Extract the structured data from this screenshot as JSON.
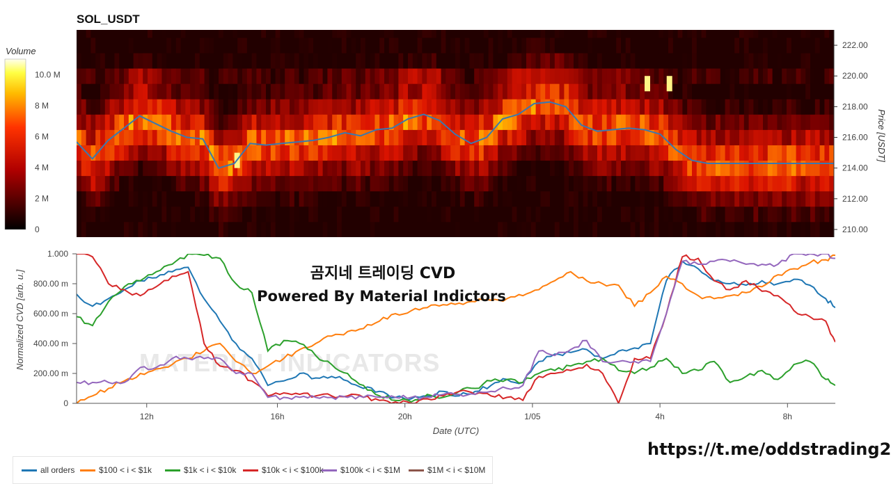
{
  "chart_data": [
    {
      "type": "heatmap",
      "title": "SOL_USDT",
      "colorbar": {
        "label": "Volume",
        "ticks": [
          "10.0 M",
          "8 M",
          "6 M",
          "4 M",
          "2 M",
          "0"
        ],
        "tick_values": [
          10,
          8,
          6,
          4,
          2,
          0
        ],
        "range": [
          0,
          11
        ],
        "colors": [
          "#000000",
          "#ff0000",
          "#ffff00",
          "#ffffff"
        ]
      },
      "ylabel": "Price [USDT]",
      "yticks": [
        "222.00",
        "220.00",
        "218.00",
        "216.00",
        "214.00",
        "212.00",
        "210.00"
      ],
      "ytick_values": [
        222,
        220,
        218,
        216,
        214,
        212,
        210
      ],
      "ylim": [
        209.5,
        223.0
      ],
      "price_series": {
        "name": "price",
        "color": "#3a78b0",
        "t": [
          0,
          0.5,
          1,
          1.5,
          2,
          2.5,
          3,
          3.5,
          4,
          4.5,
          5,
          5.5,
          6,
          6.5,
          7,
          7.5,
          8,
          8.5,
          9,
          9.5,
          10,
          10.5,
          11,
          11.5,
          12,
          12.5,
          13,
          13.5,
          14,
          14.5,
          15,
          15.5,
          16,
          16.5,
          17,
          17.5,
          18,
          18.5,
          19,
          19.5,
          20,
          20.5,
          21,
          21.5,
          22,
          22.5,
          23,
          23.5,
          24
        ],
        "price": [
          215.7,
          214.6,
          215.8,
          216.6,
          217.4,
          216.9,
          216.4,
          216.0,
          215.9,
          214.0,
          214.3,
          215.6,
          215.5,
          215.6,
          215.7,
          215.8,
          216.0,
          216.3,
          216.1,
          216.5,
          216.6,
          217.2,
          217.5,
          217.1,
          216.2,
          215.6,
          216.0,
          217.2,
          217.5,
          218.2,
          218.3,
          218.0,
          216.8,
          216.4,
          216.5,
          216.6,
          216.5,
          216.2,
          215.2,
          214.5,
          214.3,
          214.3,
          214.3,
          214.3,
          214.3,
          214.3,
          214.3,
          214.3,
          214.3
        ]
      }
    },
    {
      "type": "line",
      "overlay_title": "곰지네 트레이딩 CVD",
      "overlay_subtitle": "Powered By Material Indictors",
      "watermark": "MATERIAL INDICATORS",
      "xlabel": "Date (UTC)",
      "ylabel": "Normalized CVD [arb. u.]",
      "yticks": [
        "1.000",
        "800.00 m",
        "600.00 m",
        "400.00 m",
        "200.00 m",
        "0"
      ],
      "ytick_values": [
        1.0,
        0.8,
        0.6,
        0.4,
        0.2,
        0.0
      ],
      "ylim": [
        0,
        1.0
      ],
      "xticks": [
        "12h",
        "16h",
        "20h",
        "1/05",
        "4h",
        "8h"
      ],
      "xtick_values": [
        2.2,
        6.3,
        10.3,
        14.3,
        18.3,
        22.3
      ],
      "xlim": [
        0,
        23.8
      ],
      "series": [
        {
          "name": "all orders",
          "color": "#1f77b4",
          "x": [
            0,
            0.5,
            1,
            1.5,
            2,
            2.5,
            3,
            3.5,
            4,
            4.5,
            5,
            5.5,
            6,
            6.5,
            7,
            7.5,
            8,
            8.5,
            9,
            9.5,
            10,
            10.5,
            11,
            11.5,
            12,
            12.5,
            13,
            13.5,
            14,
            14.5,
            15,
            15.5,
            16,
            16.5,
            17,
            17.5,
            18,
            18.5,
            19,
            19.5,
            20,
            20.5,
            21,
            21.5,
            22,
            22.5,
            23,
            23.5,
            23.8
          ],
          "y": [
            0.73,
            0.65,
            0.7,
            0.76,
            0.82,
            0.84,
            0.88,
            0.91,
            0.7,
            0.55,
            0.4,
            0.3,
            0.12,
            0.15,
            0.2,
            0.17,
            0.18,
            0.15,
            0.1,
            0.08,
            0.04,
            0.03,
            0.05,
            0.08,
            0.05,
            0.08,
            0.12,
            0.16,
            0.14,
            0.28,
            0.33,
            0.34,
            0.36,
            0.3,
            0.35,
            0.37,
            0.4,
            0.82,
            0.95,
            0.9,
            0.82,
            0.8,
            0.79,
            0.82,
            0.8,
            0.83,
            0.79,
            0.7,
            0.64
          ]
        },
        {
          "name": "$100 < i < $1k",
          "color": "#ff7f0e",
          "x": [
            0,
            0.5,
            1,
            1.5,
            2,
            2.5,
            3,
            3.5,
            4,
            4.5,
            5,
            5.5,
            6,
            6.5,
            7,
            7.5,
            8,
            8.5,
            9,
            9.5,
            10,
            10.5,
            11,
            11.5,
            12,
            12.5,
            13,
            13.5,
            14,
            14.5,
            15,
            15.5,
            16,
            16.5,
            17,
            17.5,
            18,
            18.5,
            19,
            19.5,
            20,
            20.5,
            21,
            21.5,
            22,
            22.5,
            23,
            23.5,
            23.8
          ],
          "y": [
            0.0,
            0.05,
            0.1,
            0.15,
            0.2,
            0.23,
            0.26,
            0.3,
            0.35,
            0.4,
            0.28,
            0.2,
            0.25,
            0.3,
            0.36,
            0.4,
            0.45,
            0.48,
            0.5,
            0.55,
            0.6,
            0.62,
            0.64,
            0.66,
            0.67,
            0.68,
            0.69,
            0.7,
            0.72,
            0.76,
            0.82,
            0.88,
            0.82,
            0.8,
            0.79,
            0.65,
            0.74,
            0.85,
            0.8,
            0.72,
            0.7,
            0.72,
            0.74,
            0.78,
            0.86,
            0.9,
            0.94,
            0.96,
            0.99
          ]
        },
        {
          "name": "$1k < i < $10k",
          "color": "#2ca02c",
          "x": [
            0,
            0.5,
            1,
            1.5,
            2,
            2.5,
            3,
            3.5,
            4,
            4.5,
            5,
            5.5,
            6,
            6.5,
            7,
            7.5,
            8,
            8.5,
            9,
            9.5,
            10,
            10.5,
            11,
            11.5,
            12,
            12.5,
            13,
            13.5,
            14,
            14.5,
            15,
            15.5,
            16,
            16.5,
            17,
            17.5,
            18,
            18.5,
            19,
            19.5,
            20,
            20.5,
            21,
            21.5,
            22,
            22.5,
            23,
            23.5,
            23.8
          ],
          "y": [
            0.58,
            0.52,
            0.68,
            0.78,
            0.82,
            0.88,
            0.93,
            1.0,
            0.99,
            0.97,
            0.8,
            0.74,
            0.35,
            0.42,
            0.4,
            0.32,
            0.26,
            0.2,
            0.12,
            0.05,
            0.02,
            0.01,
            0.06,
            0.04,
            0.08,
            0.1,
            0.15,
            0.16,
            0.14,
            0.2,
            0.22,
            0.25,
            0.28,
            0.3,
            0.22,
            0.2,
            0.24,
            0.3,
            0.2,
            0.22,
            0.28,
            0.14,
            0.18,
            0.22,
            0.16,
            0.26,
            0.28,
            0.16,
            0.12
          ]
        },
        {
          "name": "$10k < i < $100k",
          "color": "#d62728",
          "x": [
            0,
            0.5,
            1,
            1.5,
            2,
            2.5,
            3,
            3.5,
            4,
            4.5,
            5,
            5.5,
            6,
            6.5,
            7,
            7.5,
            8,
            8.5,
            9,
            9.5,
            10,
            10.5,
            11,
            11.5,
            12,
            12.5,
            13,
            13.5,
            14,
            14.5,
            15,
            15.5,
            16,
            16.5,
            17,
            17.5,
            18,
            18.5,
            19,
            19.5,
            20,
            20.5,
            21,
            21.5,
            22,
            22.5,
            23,
            23.5,
            23.8
          ],
          "y": [
            1.0,
            0.98,
            0.8,
            0.76,
            0.72,
            0.78,
            0.85,
            0.88,
            0.4,
            0.25,
            0.22,
            0.15,
            0.05,
            0.07,
            0.06,
            0.05,
            0.05,
            0.05,
            0.04,
            0.02,
            0.01,
            0.0,
            0.03,
            0.05,
            0.08,
            0.06,
            0.05,
            0.04,
            0.02,
            0.18,
            0.2,
            0.22,
            0.26,
            0.2,
            0.0,
            0.3,
            0.3,
            0.6,
            0.98,
            0.97,
            0.82,
            0.76,
            0.82,
            0.75,
            0.72,
            0.62,
            0.58,
            0.55,
            0.41
          ]
        },
        {
          "name": "$100k < i < $1M",
          "color": "#9467bd",
          "x": [
            0,
            0.5,
            1,
            1.5,
            2,
            2.5,
            3,
            3.5,
            4,
            4.5,
            5,
            5.5,
            6,
            6.5,
            7,
            7.5,
            8,
            8.5,
            9,
            9.5,
            10,
            10.5,
            11,
            11.5,
            12,
            12.5,
            13,
            13.5,
            14,
            14.5,
            15,
            15.5,
            16,
            16.5,
            17,
            17.5,
            18,
            18.5,
            19,
            19.5,
            20,
            20.5,
            21,
            21.5,
            22,
            22.5,
            23,
            23.5,
            23.8
          ],
          "y": [
            0.14,
            0.14,
            0.14,
            0.14,
            0.24,
            0.24,
            0.3,
            0.3,
            0.3,
            0.3,
            0.2,
            0.2,
            0.04,
            0.04,
            0.04,
            0.04,
            0.04,
            0.04,
            0.04,
            0.04,
            0.04,
            0.04,
            0.04,
            0.06,
            0.06,
            0.06,
            0.08,
            0.1,
            0.12,
            0.35,
            0.32,
            0.36,
            0.42,
            0.28,
            0.28,
            0.28,
            0.28,
            0.6,
            0.95,
            0.93,
            0.95,
            0.95,
            0.93,
            0.93,
            0.93,
            1.0,
            1.0,
            1.0,
            0.97
          ]
        },
        {
          "name": "$1M < i < $10M",
          "color": "#8c564b",
          "x": [],
          "y": []
        }
      ]
    }
  ],
  "link_text": "https://t.me/oddstrading2"
}
